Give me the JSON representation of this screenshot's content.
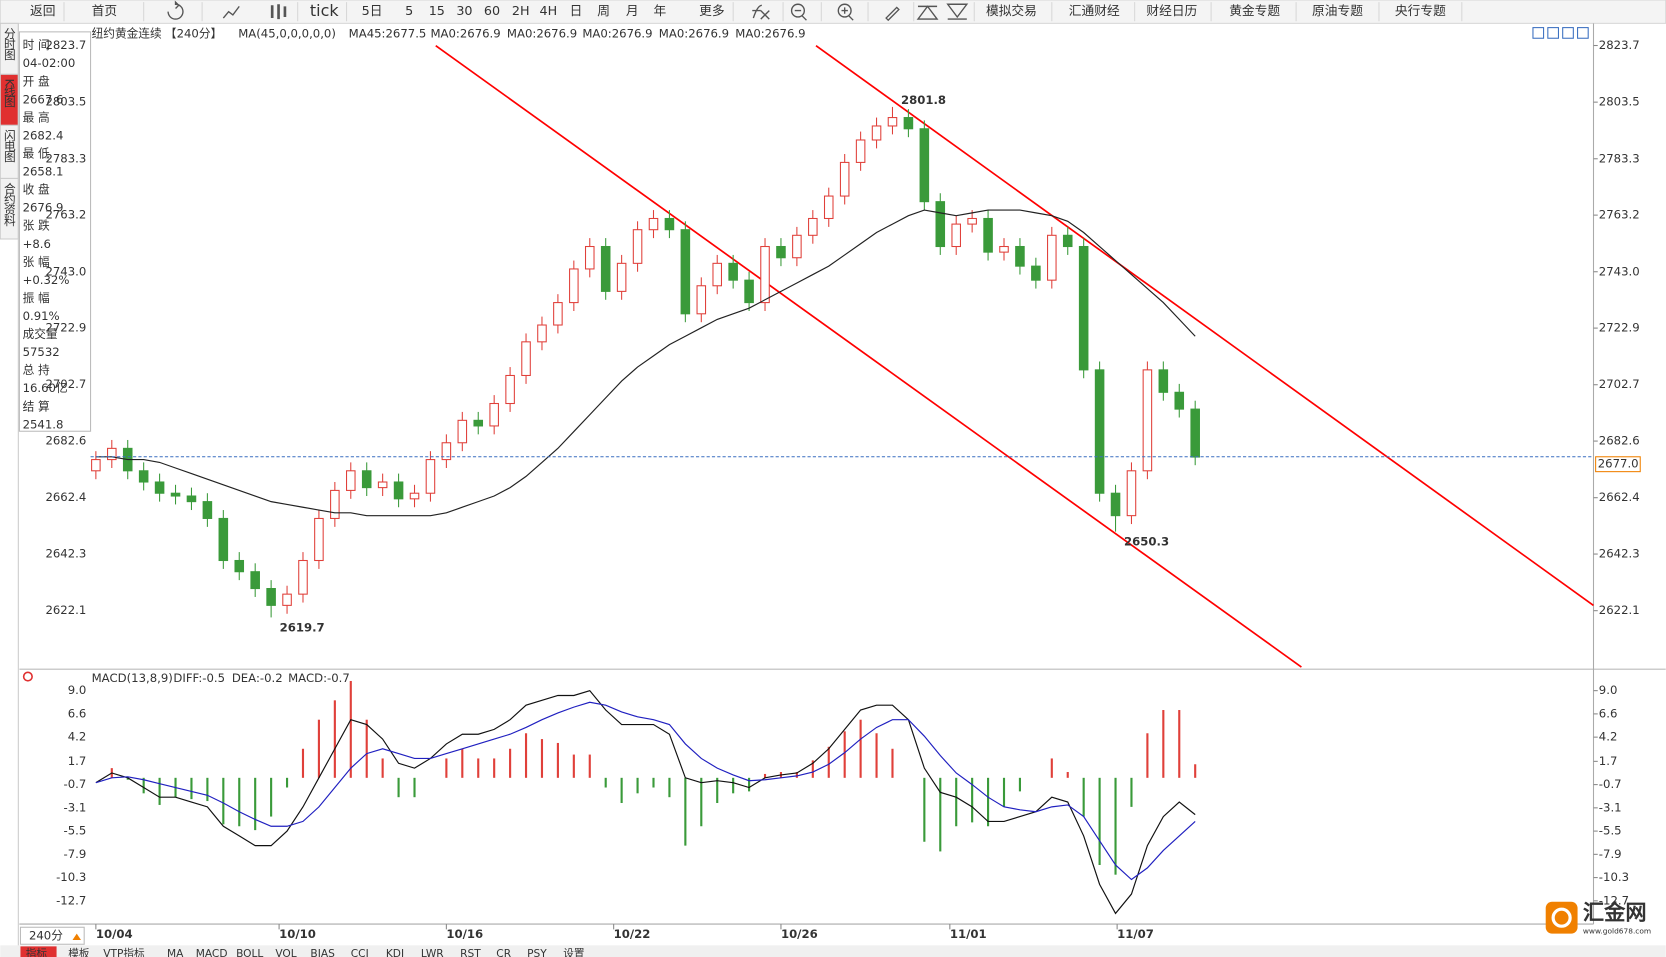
{
  "toolbar": [
    "返回",
    "首页",
    "tick",
    "5日",
    "5",
    "15",
    "30",
    "60",
    "2H",
    "4H",
    "日",
    "周",
    "月",
    "年",
    "更多",
    "模拟交易",
    "汇通财经",
    "财经日历",
    "黄金专题",
    "原油专题",
    "央行专题"
  ],
  "side_tabs": [
    "分时图",
    "K线图",
    "闪电图",
    "合约资料"
  ],
  "info_panel": [
    {
      "label": "时 间",
      "value": "04-02:00",
      "color": "#333333"
    },
    {
      "label": "开 盘",
      "value": "2667.6",
      "color": "#2a9a2a"
    },
    {
      "label": "最 高",
      "value": "2682.4",
      "color": "#e03030"
    },
    {
      "label": "最 低",
      "value": "2658.1",
      "color": "#2a9a2a"
    },
    {
      "label": "收 盘",
      "value": "2676.9",
      "color": "#e03030"
    },
    {
      "label": "张 跌",
      "value": "+8.6",
      "color": "#e03030"
    },
    {
      "label": "张 幅",
      "value": "+0.32%",
      "color": "#e03030"
    },
    {
      "label": "振 幅",
      "value": "0.91%",
      "color": "#333333"
    },
    {
      "label": "成交量",
      "value": "57532",
      "color": "#333333"
    },
    {
      "label": "总 持",
      "value": "16.60亿",
      "color": "#333333"
    },
    {
      "label": "结 算",
      "value": "2541.8",
      "color": "#333333"
    }
  ],
  "chart_data": {
    "type": "candlestick",
    "title": "纽约黄金连续",
    "period": "【240分】",
    "ma_legend": [
      {
        "text": "MA(45,0,0,0,0,0)",
        "color": "#333333"
      },
      {
        "text": "MA45:2677.5",
        "color": "#222222"
      },
      {
        "text": "MA0:2676.9",
        "color": "#2020c0"
      },
      {
        "text": "MA0:2676.9",
        "color": "#d020d0"
      },
      {
        "text": "MA0:2676.9",
        "color": "#f08000"
      },
      {
        "text": "MA0:2676.9",
        "color": "#808080"
      },
      {
        "text": "MA0:2676.9",
        "color": "#e03030"
      }
    ],
    "up_color": "#e0403a",
    "down_color": "#3a9a3a",
    "ma_color": "#222222",
    "open": [
      2672,
      2676,
      2680,
      2672,
      2668,
      2664,
      2663,
      2661,
      2655,
      2640,
      2636,
      2630,
      2624,
      2628,
      2640,
      2655,
      2665,
      2672,
      2666,
      2668,
      2662,
      2664,
      2676,
      2682,
      2690,
      2688,
      2696,
      2706,
      2718,
      2724,
      2732,
      2744,
      2752,
      2736,
      2746,
      2758,
      2762,
      2758,
      2728,
      2738,
      2746,
      2740,
      2732,
      2752,
      2748,
      2756,
      2762,
      2770,
      2782,
      2790,
      2795,
      2798,
      2794,
      2768,
      2752,
      2760,
      2762,
      2750,
      2752,
      2745,
      2740,
      2756,
      2752,
      2708,
      2664,
      2656,
      2672,
      2708,
      2700,
      2694
    ],
    "high": [
      2679,
      2683,
      2683,
      2675,
      2671,
      2667,
      2666,
      2664,
      2658,
      2643,
      2639,
      2633,
      2631,
      2643,
      2658,
      2668,
      2675,
      2675,
      2671,
      2671,
      2667,
      2679,
      2685,
      2693,
      2693,
      2699,
      2709,
      2721,
      2727,
      2735,
      2747,
      2755,
      2755,
      2749,
      2761,
      2765,
      2765,
      2761,
      2741,
      2749,
      2749,
      2743,
      2755,
      2755,
      2759,
      2765,
      2773,
      2785,
      2793,
      2798,
      2801.8,
      2801,
      2797,
      2771,
      2763,
      2765,
      2765,
      2755,
      2755,
      2748,
      2759,
      2759,
      2755,
      2711,
      2667,
      2675,
      2711,
      2711,
      2703,
      2697
    ],
    "low": [
      2669,
      2673,
      2669,
      2665,
      2661,
      2660,
      2658,
      2652,
      2637,
      2633,
      2627,
      2619.7,
      2621,
      2625,
      2637,
      2652,
      2662,
      2663,
      2663,
      2659,
      2659,
      2661,
      2673,
      2679,
      2685,
      2685,
      2693,
      2703,
      2715,
      2721,
      2729,
      2741,
      2733,
      2733,
      2743,
      2755,
      2755,
      2725,
      2725,
      2735,
      2737,
      2729,
      2729,
      2745,
      2745,
      2753,
      2759,
      2767,
      2779,
      2787,
      2792,
      2791,
      2765,
      2749,
      2749,
      2757,
      2747,
      2747,
      2742,
      2737,
      2737,
      2749,
      2705,
      2661,
      2650.3,
      2653,
      2669,
      2697,
      2691,
      2674
    ],
    "close": [
      2676,
      2680,
      2672,
      2668,
      2664,
      2663,
      2661,
      2655,
      2640,
      2636,
      2630,
      2624,
      2628,
      2640,
      2655,
      2665,
      2672,
      2666,
      2668,
      2662,
      2664,
      2676,
      2682,
      2690,
      2688,
      2696,
      2706,
      2718,
      2724,
      2732,
      2744,
      2752,
      2736,
      2746,
      2758,
      2762,
      2758,
      2728,
      2738,
      2746,
      2740,
      2732,
      2752,
      2748,
      2756,
      2762,
      2770,
      2782,
      2790,
      2795,
      2798,
      2794,
      2768,
      2752,
      2760,
      2762,
      2750,
      2752,
      2745,
      2740,
      2756,
      2752,
      2708,
      2664,
      2656,
      2672,
      2708,
      2700,
      2694,
      2676.9
    ],
    "ma": [
      2677,
      2677,
      2676,
      2676,
      2675,
      2673,
      2671,
      2669,
      2667,
      2665,
      2663,
      2661,
      2660,
      2659,
      2658,
      2657,
      2657,
      2656,
      2656,
      2656,
      2656,
      2656,
      2657,
      2659,
      2661,
      2663,
      2666,
      2670,
      2675,
      2680,
      2686,
      2692,
      2698,
      2704,
      2709,
      2713,
      2717,
      2720,
      2723,
      2726,
      2728,
      2730,
      2733,
      2736,
      2739,
      2742,
      2745,
      2749,
      2753,
      2757,
      2760,
      2763,
      2765,
      2764,
      2763,
      2764,
      2765,
      2765,
      2765,
      2764,
      2763,
      2761,
      2757,
      2752,
      2747,
      2742,
      2737,
      2732,
      2726,
      2720
    ],
    "ylim": [
      2602,
      2831.6
    ],
    "yticks": [
      2823.7,
      2803.5,
      2783.3,
      2763.2,
      {
        "value": 2743,
        "label": "2743.0"
      },
      2722.9,
      2702.7,
      2682.6,
      2662.4,
      2642.3,
      2622.1
    ],
    "xticks": [
      {
        "value": 0,
        "label": "10/04"
      },
      {
        "value": 11.5,
        "label": "10/10"
      },
      {
        "value": 22,
        "label": "10/16"
      },
      {
        "value": 32.5,
        "label": "10/22"
      },
      {
        "value": 43,
        "label": "10/26"
      },
      {
        "value": 53.6,
        "label": "11/01"
      },
      {
        "value": 64.1,
        "label": "11/07"
      }
    ],
    "annotations": [
      {
        "index": 50,
        "value": 2801.8,
        "color": "#e03030"
      },
      {
        "index": 11,
        "value": 2619.7,
        "color": "#2a9a2a"
      },
      {
        "index": 64,
        "value": 2650.3,
        "color": "#2a9a2a"
      }
    ],
    "last_price": {
      "value": 2677,
      "label": "2677.0"
    },
    "macd": {
      "legend": [
        {
          "text": "MACD(13,8,9)",
          "color": "#222222"
        },
        {
          "text": "DIFF:-0.5",
          "color": "#222222"
        },
        {
          "text": "DEA:-0.2",
          "color": "#2020c0"
        },
        {
          "text": "MACD:-0.7",
          "color": "#d020d0"
        }
      ],
      "ylim": [
        -15.1,
        11
      ],
      "yticks": [
        {
          "value": 9,
          "label": "9.0"
        },
        6.6,
        4.2,
        1.7,
        -0.7,
        -3.1,
        -5.5,
        -7.9,
        -10.3,
        -12.7
      ],
      "diff_color": "#111111",
      "dea_color": "#2020c0",
      "diff": [
        -0.5,
        0.5,
        0,
        -1,
        -2,
        -2,
        -2.5,
        -3,
        -5,
        -6,
        -7,
        -7,
        -5.5,
        -3,
        0,
        3,
        6,
        5.5,
        4,
        1.5,
        1,
        2,
        3.5,
        4.5,
        4.5,
        5,
        6,
        7.5,
        8,
        8.5,
        8.5,
        9,
        7,
        5.5,
        5.5,
        5.5,
        4.5,
        0,
        -0.5,
        -0.3,
        -0.5,
        -1,
        0,
        0.3,
        0.5,
        1.5,
        3,
        5,
        7,
        7.5,
        7.5,
        6,
        1,
        -1.5,
        -2,
        -3,
        -4.5,
        -4.5,
        -4,
        -3.5,
        -2,
        -2.5,
        -6,
        -11,
        -14,
        -12,
        -7,
        -4,
        -2.5,
        -3.8
      ],
      "dea": [
        -0.5,
        0,
        0.1,
        -0.2,
        -0.6,
        -1,
        -1.4,
        -1.8,
        -2.6,
        -3.5,
        -4.3,
        -5,
        -5,
        -4.5,
        -3,
        -1,
        1,
        2.5,
        3,
        2.5,
        2,
        2,
        2.5,
        3,
        3.5,
        4,
        4.5,
        5.2,
        6,
        6.7,
        7.3,
        7.8,
        7.5,
        6.8,
        6.3,
        6,
        5.5,
        3.5,
        2,
        1,
        0.3,
        -0.3,
        -0.2,
        0,
        0.2,
        0.6,
        1.4,
        2.6,
        4,
        5.2,
        6,
        6,
        4.3,
        2.3,
        0.5,
        -0.7,
        -2,
        -3,
        -3.3,
        -3.5,
        -3,
        -2.8,
        -4,
        -6.5,
        -9,
        -10.5,
        -9.3,
        -7.5,
        -6,
        -4.5
      ],
      "hist": [
        0,
        1,
        -0.2,
        -1.6,
        -2.8,
        -2,
        -2.2,
        -2.4,
        -4.8,
        -5,
        -5.4,
        -4,
        -1,
        3,
        6,
        8,
        10,
        6,
        2,
        -2,
        -2,
        0,
        2,
        3,
        2,
        2,
        3,
        4.6,
        4,
        3.6,
        2.4,
        2.4,
        -1,
        -2.6,
        -1.6,
        -1,
        -2,
        -7,
        -5,
        -2.6,
        -1.6,
        -1.4,
        0.4,
        0.6,
        0.6,
        1.8,
        3.2,
        4.8,
        6,
        4.6,
        3,
        0,
        -6.6,
        -7.6,
        -5,
        -4.6,
        -5,
        -3,
        -1.4,
        0,
        2,
        0.6,
        -4,
        -9,
        -10,
        -3,
        4.6,
        7,
        7,
        1.4
      ]
    }
  },
  "bottom": {
    "period": "240分",
    "tabs": [
      "指标",
      "模板",
      "VTP指标",
      "MA",
      "MACD",
      "BOLL",
      "VOL",
      "BIAS",
      "CCI",
      "KDJ",
      "LWR",
      "RST",
      "CR",
      "PSY",
      "设置"
    ]
  },
  "logo": {
    "name": "汇金网",
    "url": "www.gold678.com"
  }
}
